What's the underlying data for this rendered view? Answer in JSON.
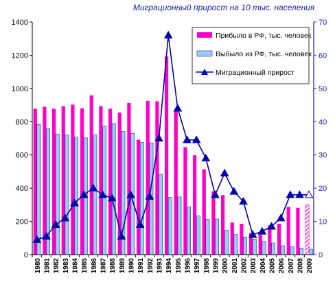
{
  "chart_data": {
    "type": "bar",
    "title": "Миграционный прирост на 10 тыс. населения",
    "categories": [
      "1980",
      "1981",
      "1982",
      "1983",
      "1984",
      "1985",
      "1986",
      "1987",
      "1988",
      "1989",
      "1990",
      "1991",
      "1992",
      "1993",
      "1994",
      "1995",
      "1996",
      "1997",
      "1998",
      "1999",
      "2000",
      "2001",
      "2002",
      "2003",
      "2004",
      "2005",
      "2006",
      "2007",
      "2008",
      "2009"
    ],
    "left_axis": {
      "ylim": [
        0,
        1400
      ],
      "ticks": [
        "0",
        "200",
        "400",
        "600",
        "800",
        "1000",
        "1200",
        "1400"
      ]
    },
    "right_axis": {
      "ylim": [
        0,
        70
      ],
      "ticks": [
        "0",
        "10",
        "20",
        "30",
        "40",
        "50",
        "60",
        "70"
      ]
    },
    "grid": false,
    "legend_position": "top-right",
    "series": [
      {
        "name": "Прибыло в РФ, тыс. человек",
        "kind": "bar",
        "axis": "left",
        "color": "#ff00cc",
        "values": [
          878,
          890,
          878,
          893,
          903,
          880,
          958,
          893,
          878,
          855,
          913,
          692,
          926,
          923,
          1192,
          866,
          647,
          598,
          514,
          380,
          359,
          193,
          185,
          130,
          120,
          177,
          186,
          287,
          282,
          300
        ],
        "hatched_last": true
      },
      {
        "name": "Выбыло из РФ, тыс. человек",
        "kind": "bar",
        "axis": "left",
        "color": "#99ccff",
        "values": [
          784,
          757,
          726,
          720,
          707,
          703,
          720,
          773,
          789,
          741,
          729,
          675,
          673,
          483,
          345,
          347,
          288,
          233,
          213,
          215,
          146,
          121,
          106,
          94,
          80,
          70,
          54,
          47,
          40,
          33
        ]
      },
      {
        "name": "Миграционный прирост",
        "kind": "line",
        "axis": "right",
        "color": "#0000aa",
        "values": [
          4.5,
          5.5,
          9.0,
          11.0,
          15.5,
          18.0,
          20.0,
          18.0,
          17.0,
          5.5,
          18.0,
          9.0,
          17.5,
          35.0,
          66.0,
          44.0,
          34.5,
          34.5,
          29.0,
          18.0,
          24.5,
          19.0,
          16.0,
          6.0,
          7.0,
          8.5,
          11.0,
          18.0,
          18.0,
          18.0
        ],
        "hollow_last": true
      }
    ]
  }
}
